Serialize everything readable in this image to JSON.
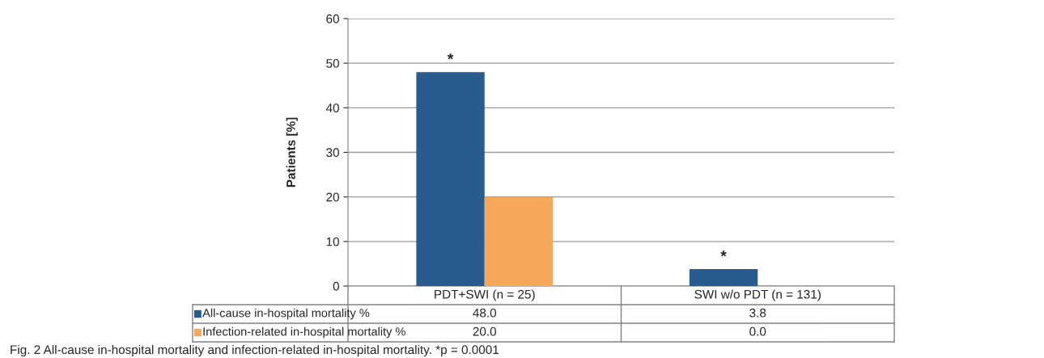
{
  "chart_data": {
    "type": "bar",
    "ylabel": "Patients [%]",
    "categories": [
      "PDT+SWI (n = 25)",
      "SWI w/o PDT (n = 131)"
    ],
    "series": [
      {
        "name": "All-cause in-hospital mortality %",
        "color": "#2a5b8e",
        "values": [
          48.0,
          3.8
        ],
        "value_labels": [
          "48.0",
          "3.8"
        ]
      },
      {
        "name": "Infection-related in-hospital mortality %",
        "color": "#f6a85a",
        "values": [
          20.0,
          0.0
        ],
        "value_labels": [
          "20.0",
          "0.0"
        ]
      }
    ],
    "ylim": [
      0,
      60
    ],
    "yticks": [
      0,
      10,
      20,
      30,
      40,
      50,
      60
    ],
    "grid": "y",
    "legend": "bottom left",
    "annotations": [
      {
        "text": "*",
        "x": "PDT+SWI (n = 25)",
        "y": 48.0
      },
      {
        "text": "*",
        "x": "SWI w/o PDT (n = 131)",
        "y": 3.8
      },
      "Fig. 2 All-cause in-hospital mortality and infection-related in-hospital mortality. *p = 0.0001"
    ]
  }
}
